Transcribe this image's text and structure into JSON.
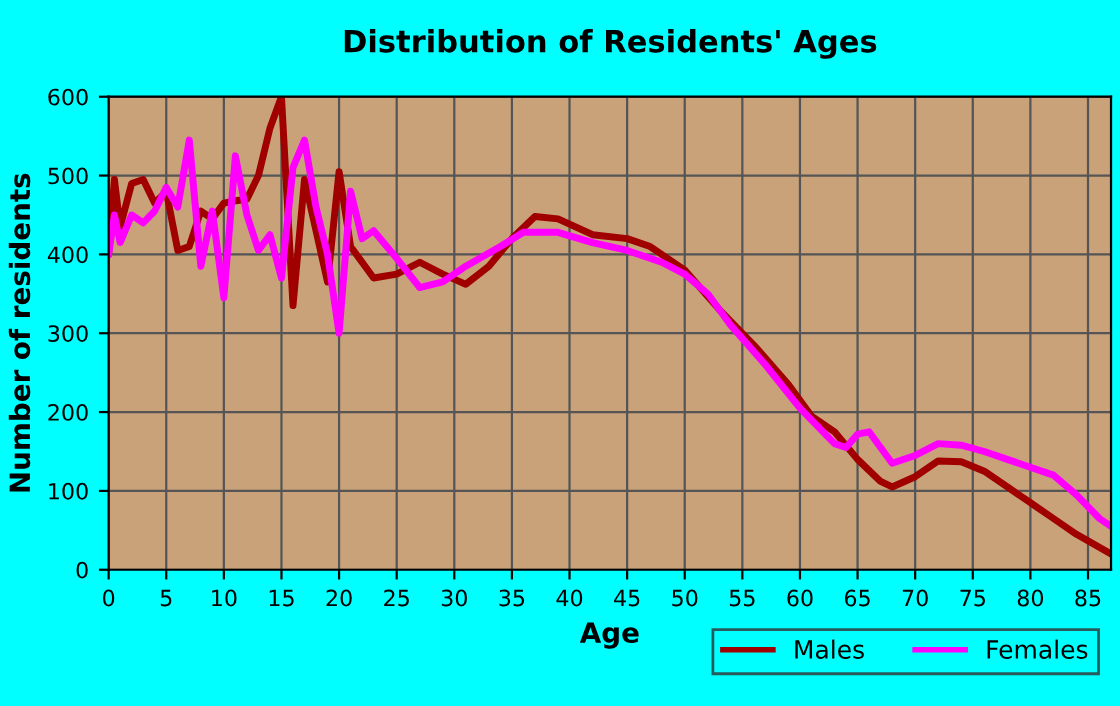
{
  "chart_data": {
    "type": "line",
    "title": "Distribution of Residents' Ages",
    "xlabel": "Age",
    "ylabel": "Number of residents",
    "xlim": [
      0,
      87
    ],
    "xticks": [
      0,
      5,
      10,
      15,
      20,
      25,
      30,
      35,
      40,
      45,
      50,
      55,
      60,
      65,
      70,
      75,
      80,
      85
    ],
    "ylim": [
      0,
      600
    ],
    "yticks": [
      0,
      100,
      200,
      300,
      400,
      500,
      600
    ],
    "grid": true,
    "legend": "bottom right",
    "series": [
      {
        "name": "Males",
        "color": "#a00000",
        "x": [
          0,
          0.5,
          1,
          2,
          3,
          4,
          5,
          6,
          7,
          8,
          9,
          10,
          11,
          12,
          13,
          14,
          15,
          16,
          17,
          18,
          19,
          20,
          21,
          23,
          25,
          27,
          29,
          31,
          33,
          35,
          37,
          39,
          42,
          45,
          47,
          50,
          53,
          56,
          59,
          61,
          63,
          65,
          67,
          68,
          70,
          72,
          74,
          76,
          78,
          80,
          82,
          84,
          87
        ],
        "values": [
          400,
          495,
          435,
          490,
          495,
          465,
          480,
          405,
          410,
          455,
          445,
          465,
          468,
          470,
          500,
          560,
          600,
          335,
          495,
          430,
          365,
          505,
          410,
          370,
          375,
          390,
          375,
          362,
          385,
          420,
          448,
          445,
          425,
          420,
          410,
          380,
          330,
          285,
          235,
          195,
          175,
          140,
          112,
          105,
          118,
          138,
          137,
          125,
          105,
          85,
          65,
          45,
          20
        ]
      },
      {
        "name": "Females",
        "color": "#ff00ff",
        "x": [
          0,
          0.5,
          1,
          2,
          3,
          4,
          5,
          6,
          7,
          8,
          9,
          10,
          11,
          12,
          13,
          14,
          15,
          16,
          17,
          18,
          19,
          20,
          21,
          22,
          23,
          25,
          27,
          29,
          31,
          34,
          36,
          39,
          42,
          45,
          48,
          50,
          52,
          54,
          57,
          60,
          63,
          64,
          65,
          66,
          68,
          70,
          72,
          74,
          76,
          78,
          80,
          82,
          84,
          86,
          87
        ],
        "values": [
          400,
          450,
          415,
          450,
          440,
          455,
          485,
          460,
          545,
          385,
          455,
          345,
          525,
          450,
          405,
          425,
          370,
          510,
          545,
          460,
          400,
          300,
          480,
          420,
          430,
          395,
          358,
          365,
          385,
          410,
          428,
          428,
          415,
          405,
          390,
          375,
          350,
          310,
          260,
          205,
          160,
          155,
          172,
          175,
          135,
          145,
          160,
          158,
          150,
          140,
          130,
          120,
          95,
          65,
          55
        ]
      }
    ]
  }
}
